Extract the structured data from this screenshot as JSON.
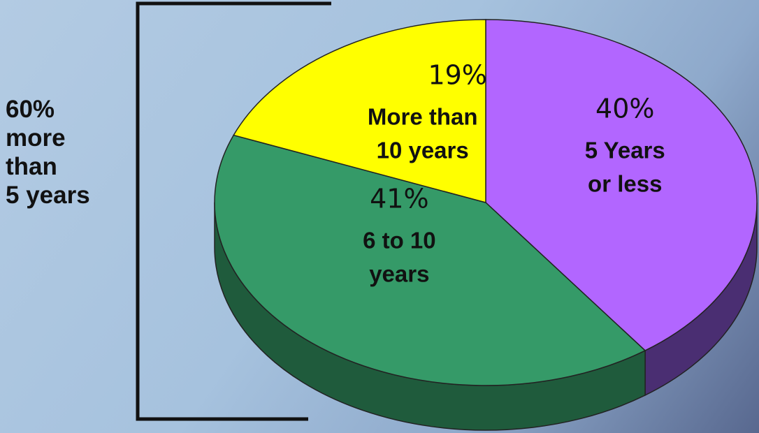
{
  "side_note": [
    "60%",
    "more",
    "than",
    "5 years"
  ],
  "colors": {
    "purple": "#b266ff",
    "green": "#359a68",
    "yellow": "#ffff00",
    "bracket": "#111111"
  },
  "chart_data": {
    "type": "pie",
    "style": "3d",
    "slices": [
      {
        "label": [
          "5 Years",
          "or less"
        ],
        "pct_text": "40%",
        "value": 40,
        "color": "#b266ff",
        "side": "#4a2e72"
      },
      {
        "label": [
          "6 to 10",
          "years"
        ],
        "pct_text": "41%",
        "value": 41,
        "color": "#359a68",
        "side": "#1f5b3c"
      },
      {
        "label": [
          "More than",
          "10 years"
        ],
        "pct_text": "19%",
        "value": 19,
        "color": "#ffff00",
        "side": "#9a9a00"
      }
    ]
  }
}
